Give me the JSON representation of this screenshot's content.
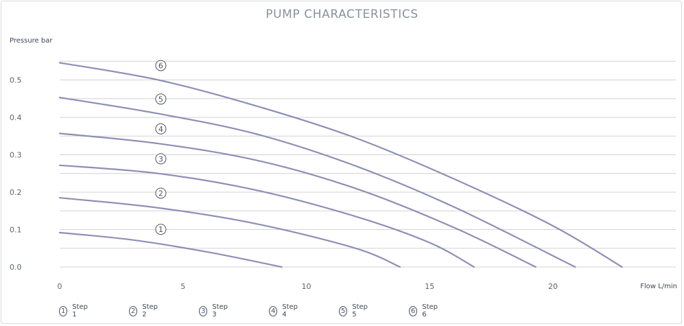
{
  "chart_data": {
    "type": "line",
    "title": "PUMP CHARACTERISTICS",
    "ylabel": "Pressure bar",
    "xlabel": "Flow L/min",
    "xlim": [
      0,
      25
    ],
    "ylim": [
      0,
      0.55
    ],
    "xticks": [
      "0",
      "5",
      "10",
      "15",
      "20"
    ],
    "yticks": [
      "0.0",
      "0.1",
      "0.2",
      "0.3",
      "0.4",
      "0.5"
    ],
    "grid": true,
    "legend_position": "bottom",
    "line_color": "#8d8fb6",
    "series": [
      {
        "name": "Step 1",
        "badge": "1",
        "points": [
          [
            0,
            0.092
          ],
          [
            3,
            0.072
          ],
          [
            6,
            0.04
          ],
          [
            9,
            0.0
          ]
        ]
      },
      {
        "name": "Step 2",
        "badge": "2",
        "points": [
          [
            0,
            0.185
          ],
          [
            4,
            0.158
          ],
          [
            8,
            0.115
          ],
          [
            12,
            0.05
          ],
          [
            13.8,
            0.0
          ]
        ]
      },
      {
        "name": "Step 3",
        "badge": "3",
        "points": [
          [
            0,
            0.272
          ],
          [
            4,
            0.25
          ],
          [
            8,
            0.205
          ],
          [
            12,
            0.135
          ],
          [
            15,
            0.065
          ],
          [
            16.8,
            0.0
          ]
        ]
      },
      {
        "name": "Step 4",
        "badge": "4",
        "points": [
          [
            0,
            0.357
          ],
          [
            4,
            0.33
          ],
          [
            8,
            0.285
          ],
          [
            12,
            0.21
          ],
          [
            16,
            0.105
          ],
          [
            19.3,
            0.0
          ]
        ]
      },
      {
        "name": "Step 5",
        "badge": "5",
        "points": [
          [
            0,
            0.453
          ],
          [
            4,
            0.41
          ],
          [
            8,
            0.355
          ],
          [
            12,
            0.27
          ],
          [
            16,
            0.16
          ],
          [
            20.9,
            0.0
          ]
        ]
      },
      {
        "name": "Step 6",
        "badge": "6",
        "points": [
          [
            0,
            0.546
          ],
          [
            4,
            0.5
          ],
          [
            8,
            0.43
          ],
          [
            12,
            0.345
          ],
          [
            16,
            0.235
          ],
          [
            20,
            0.11
          ],
          [
            22.8,
            0.0
          ]
        ]
      }
    ]
  }
}
